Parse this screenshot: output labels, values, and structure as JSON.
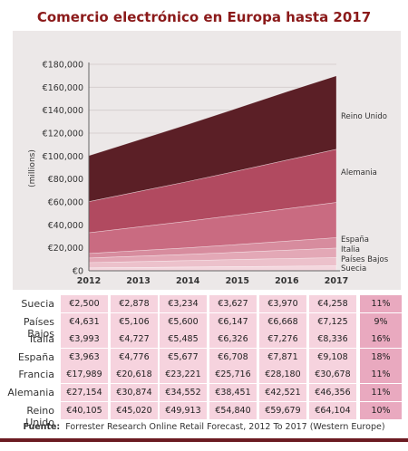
{
  "title": "Comercio electrónico en Europa hasta 2017",
  "source_label": "Fuente:",
  "source_text": "Forrester Research Online Retail Forecast, 2012 To 2017 (Western Europe)",
  "colors": {
    "reino_unido": "#5b1f26",
    "alemania": "#b14a60",
    "francia": "#c96b81",
    "espana": "#d78c9e",
    "italia": "#e3a8b6",
    "paises_bajos": "#ecc1cb",
    "suecia": "#f4d7de",
    "title": "#8b1a1a"
  },
  "chart_data": {
    "type": "area",
    "stacked": true,
    "x": [
      "2012",
      "2013",
      "2014",
      "2015",
      "2016",
      "2017"
    ],
    "ylabel": "(millions)",
    "ylim": [
      0,
      180000
    ],
    "yticks": [
      "€0",
      "€20,000",
      "€40,000",
      "€60,000",
      "€80,000",
      "€100,000",
      "€120,000",
      "€140,000",
      "€160,000",
      "€180,000"
    ],
    "series": [
      {
        "name": "Suecia",
        "values": [
          2500,
          2878,
          3234,
          3627,
          3970,
          4258
        ]
      },
      {
        "name": "Países Bajos",
        "values": [
          4631,
          5106,
          5600,
          6147,
          6668,
          7125
        ]
      },
      {
        "name": "Italia",
        "values": [
          3993,
          4727,
          5485,
          6326,
          7276,
          8336
        ]
      },
      {
        "name": "España",
        "values": [
          3963,
          4776,
          5677,
          6708,
          7871,
          9108
        ]
      },
      {
        "name": "Francia",
        "values": [
          17989,
          20618,
          23221,
          25716,
          28180,
          30678
        ]
      },
      {
        "name": "Alemania",
        "values": [
          27154,
          30874,
          34552,
          38451,
          42521,
          46356
        ]
      },
      {
        "name": "Reino Unido",
        "values": [
          40105,
          45020,
          49913,
          54840,
          59679,
          64104
        ]
      }
    ],
    "end_labels": [
      "Reino Unido",
      "Alemania",
      "España",
      "Italia",
      "Países Bajos",
      "Suecia"
    ]
  },
  "table": {
    "rows": [
      {
        "label": "Suecia",
        "values": [
          "€2,500",
          "€2,878",
          "€3,234",
          "€3,627",
          "€3,970",
          "€4,258"
        ],
        "growth": "11%"
      },
      {
        "label": "Países Bajos",
        "values": [
          "€4,631",
          "€5,106",
          "€5,600",
          "€6,147",
          "€6,668",
          "€7,125"
        ],
        "growth": "9%"
      },
      {
        "label": "Italia",
        "values": [
          "€3,993",
          "€4,727",
          "€5,485",
          "€6,326",
          "€7,276",
          "€8,336"
        ],
        "growth": "16%"
      },
      {
        "label": "España",
        "values": [
          "€3,963",
          "€4,776",
          "€5,677",
          "€6,708",
          "€7,871",
          "€9,108"
        ],
        "growth": "18%"
      },
      {
        "label": "Francia",
        "values": [
          "€17,989",
          "€20,618",
          "€23,221",
          "€25,716",
          "€28,180",
          "€30,678"
        ],
        "growth": "11%"
      },
      {
        "label": "Alemania",
        "values": [
          "€27,154",
          "€30,874",
          "€34,552",
          "€38,451",
          "€42,521",
          "€46,356"
        ],
        "growth": "11%"
      },
      {
        "label": "Reino Unido",
        "values": [
          "€40,105",
          "€45,020",
          "€49,913",
          "€54,840",
          "€59,679",
          "€64,104"
        ],
        "growth": "10%"
      }
    ]
  }
}
